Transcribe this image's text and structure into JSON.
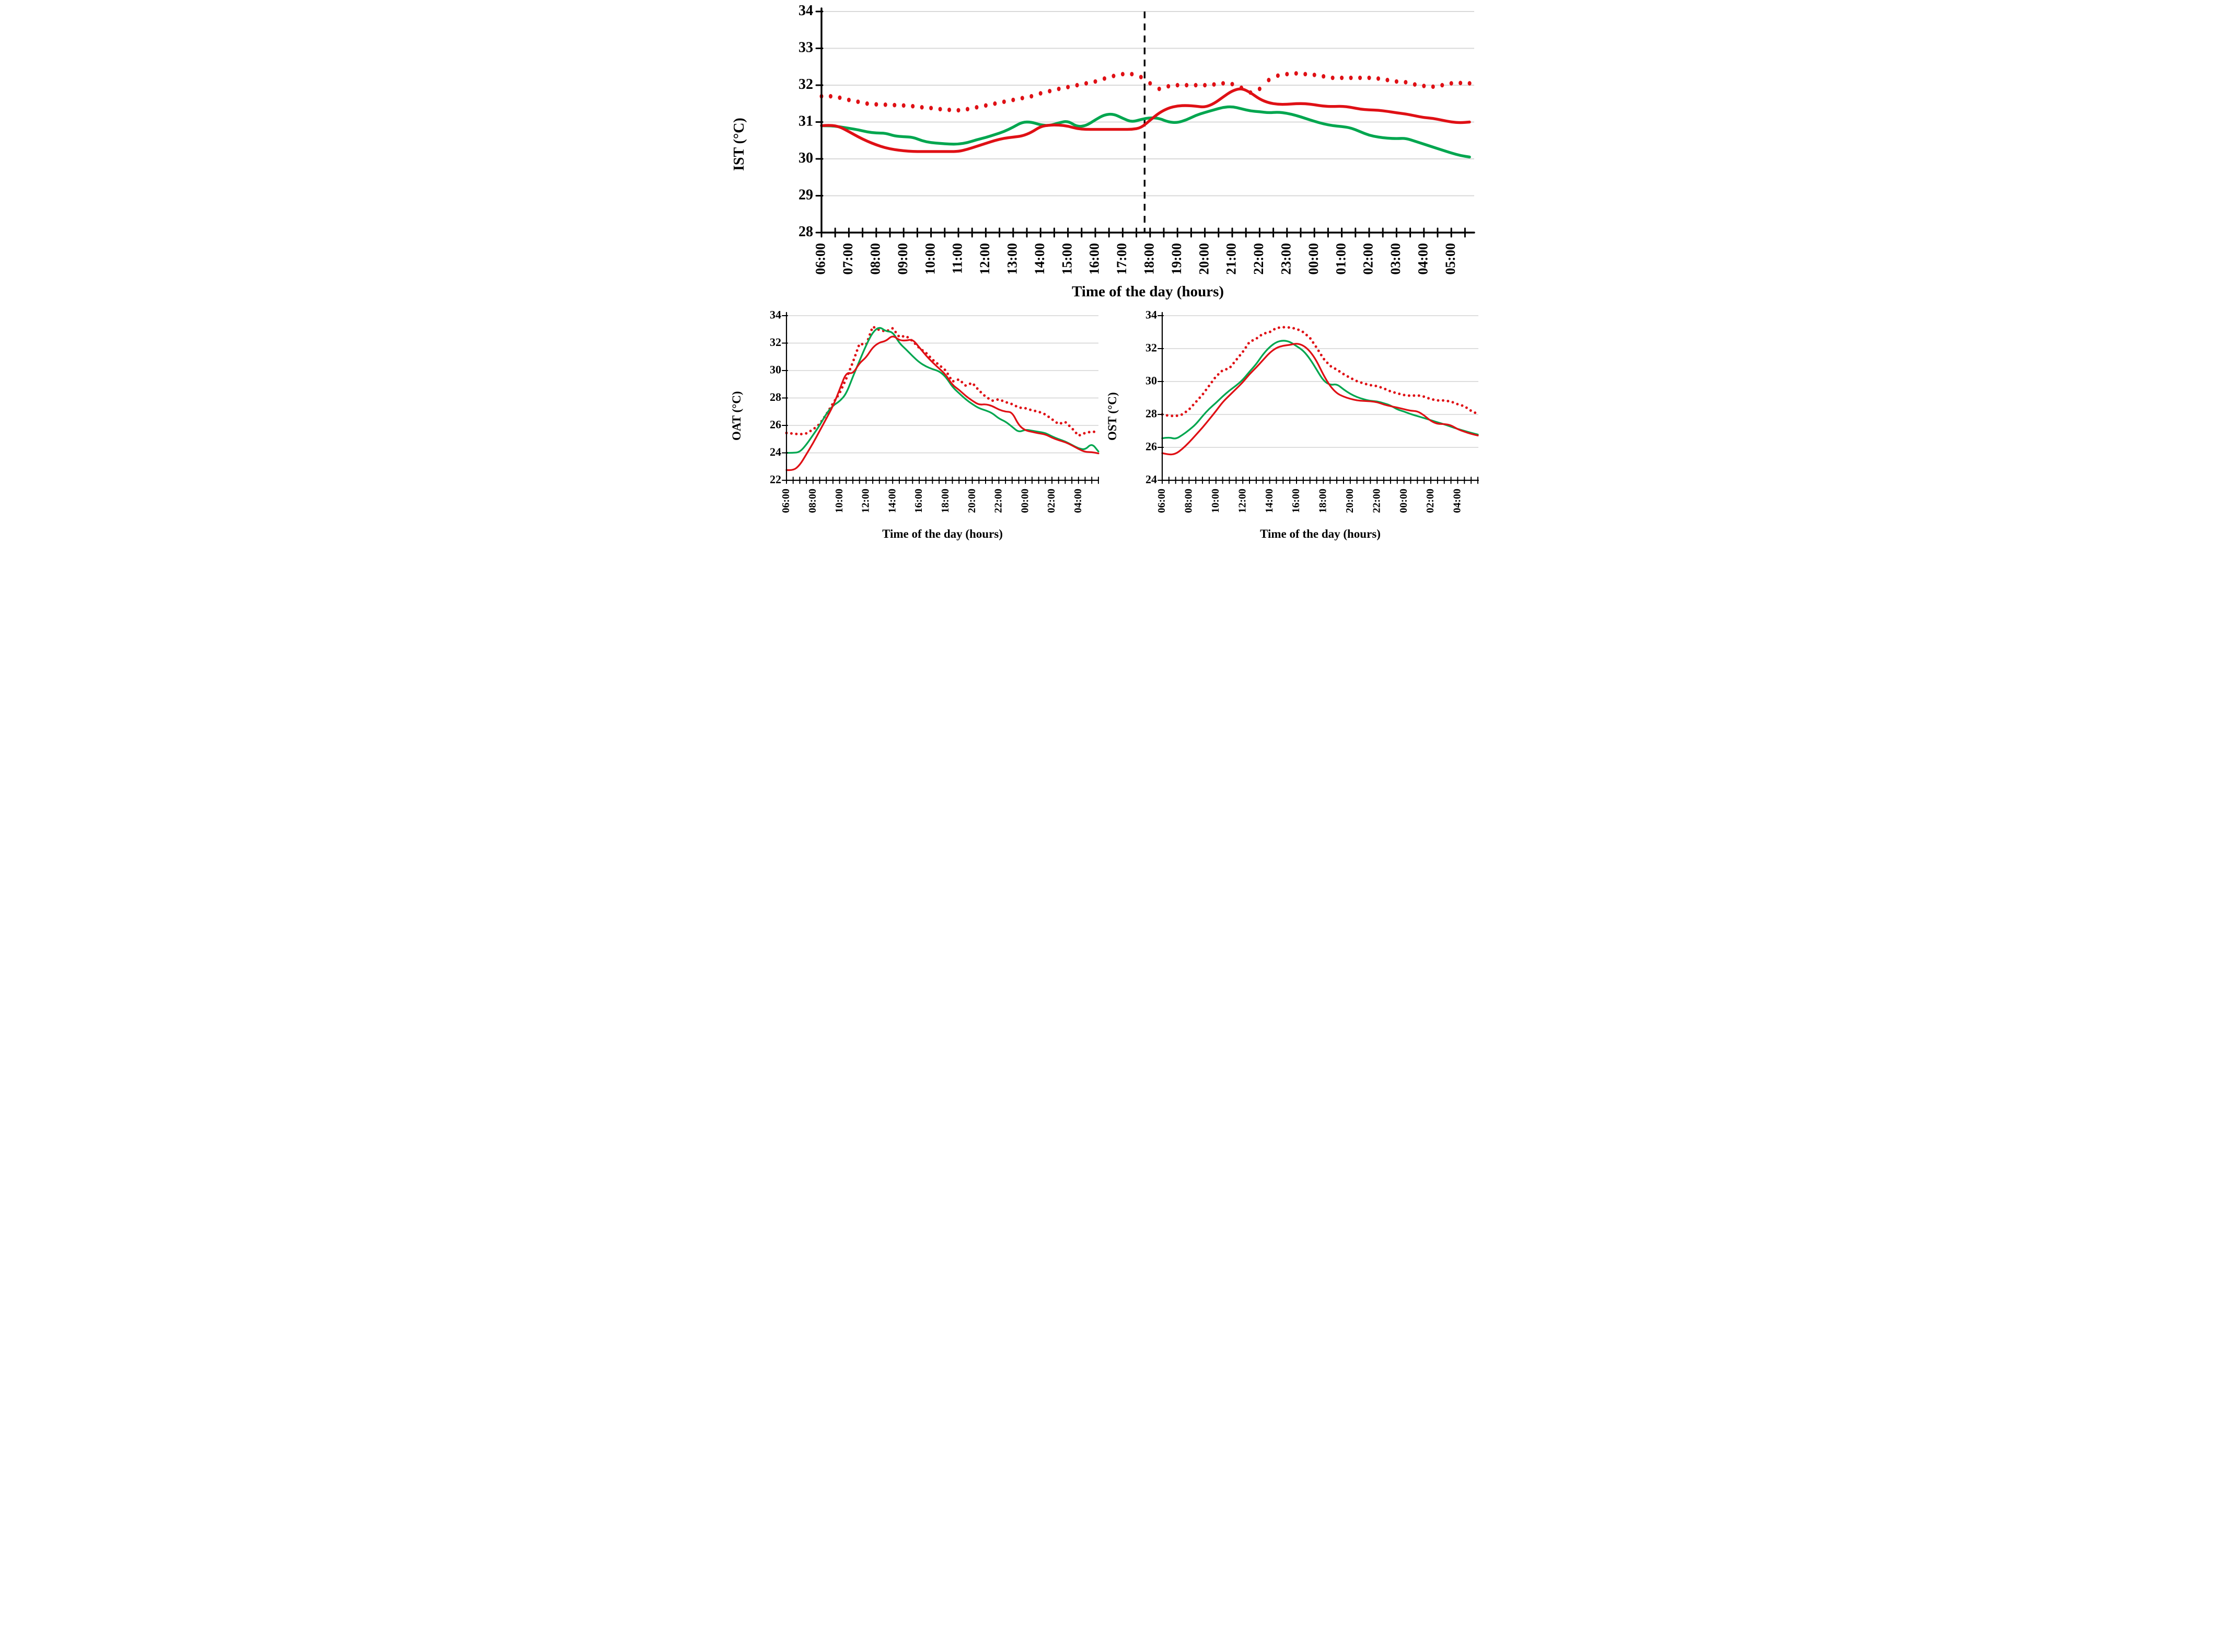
{
  "colors": {
    "red": "#df1015",
    "green": "#00a64f",
    "grid": "#d9d9d9",
    "axis": "#000000",
    "annotation": "#000000",
    "background": "#ffffff"
  },
  "chart_data": [
    {
      "id": "ist",
      "type": "line",
      "ylabel": "IST (°C)",
      "xlabel": "Time of the day (hours)",
      "ylim": [
        28,
        34
      ],
      "yticks": [
        28,
        29,
        30,
        31,
        32,
        33,
        34
      ],
      "grid": "horizontal",
      "x_start": "06:00",
      "x_step_minutes": 20,
      "x_total_hours": 23.67,
      "xtick_labels": [
        "06:00",
        "07:00",
        "08:00",
        "09:00",
        "10:00",
        "11:00",
        "12:00",
        "13:00",
        "14:00",
        "15:00",
        "16:00",
        "17:00",
        "18:00",
        "19:00",
        "20:00",
        "21:00",
        "22:00",
        "23:00",
        "00:00",
        "01:00",
        "02:00",
        "03:00",
        "04:00",
        "05:00"
      ],
      "xtick_label_every_hours": 1,
      "minor_tick_minutes": 30,
      "legend": "none",
      "annotation": {
        "type": "vertical-dashed-line",
        "nearest_label": "18:00",
        "hours_after_start": 11.8
      },
      "series": [
        {
          "name": "red-dotted",
          "color": "red",
          "style": "dotted",
          "values": [
            31.7,
            31.7,
            31.66,
            31.6,
            31.55,
            31.5,
            31.48,
            31.47,
            31.46,
            31.45,
            31.43,
            31.4,
            31.38,
            31.35,
            31.33,
            31.32,
            31.35,
            31.4,
            31.45,
            31.5,
            31.55,
            31.6,
            31.65,
            31.7,
            31.78,
            31.84,
            31.9,
            31.95,
            32.0,
            32.05,
            32.1,
            32.18,
            32.25,
            32.3,
            32.3,
            32.22,
            32.05,
            31.9,
            31.97,
            32.0,
            32.0,
            32.0,
            32.0,
            32.02,
            32.05,
            32.03,
            31.93,
            31.8,
            31.9,
            32.14,
            32.26,
            32.3,
            32.32,
            32.3,
            32.28,
            32.24,
            32.2,
            32.2,
            32.2,
            32.2,
            32.2,
            32.18,
            32.14,
            32.1,
            32.08,
            32.02,
            31.98,
            31.96,
            32.0,
            32.05,
            32.06,
            32.05
          ]
        },
        {
          "name": "green-solid",
          "color": "green",
          "style": "solid",
          "values": [
            30.9,
            30.9,
            30.87,
            30.83,
            30.79,
            30.73,
            30.7,
            30.7,
            30.62,
            30.6,
            30.59,
            30.49,
            30.44,
            30.42,
            30.4,
            30.4,
            30.44,
            30.52,
            30.58,
            30.66,
            30.74,
            30.86,
            31.0,
            31.0,
            30.92,
            30.9,
            30.98,
            31.03,
            30.87,
            30.9,
            31.06,
            31.2,
            31.22,
            31.1,
            31.0,
            31.07,
            31.12,
            31.1,
            31.0,
            30.98,
            31.06,
            31.18,
            31.26,
            31.33,
            31.4,
            31.42,
            31.36,
            31.3,
            31.28,
            31.25,
            31.27,
            31.24,
            31.18,
            31.1,
            31.02,
            30.95,
            30.9,
            30.88,
            30.84,
            30.74,
            30.64,
            30.59,
            30.56,
            30.55,
            30.56,
            30.48,
            30.4,
            30.32,
            30.24,
            30.16,
            30.09,
            30.05
          ]
        },
        {
          "name": "red-solid",
          "color": "red",
          "style": "solid",
          "values": [
            30.9,
            30.92,
            30.87,
            30.74,
            30.6,
            30.48,
            30.38,
            30.3,
            30.25,
            30.22,
            30.2,
            30.2,
            30.2,
            30.2,
            30.2,
            30.2,
            30.26,
            30.34,
            30.42,
            30.5,
            30.56,
            30.59,
            30.62,
            30.72,
            30.88,
            30.92,
            30.92,
            30.89,
            30.82,
            30.8,
            30.8,
            30.8,
            30.8,
            30.8,
            30.8,
            30.84,
            31.05,
            31.25,
            31.38,
            31.44,
            31.45,
            31.43,
            31.4,
            31.5,
            31.68,
            31.85,
            31.92,
            31.8,
            31.62,
            31.52,
            31.48,
            31.48,
            31.5,
            31.5,
            31.47,
            31.43,
            31.42,
            31.43,
            31.4,
            31.35,
            31.33,
            31.32,
            31.29,
            31.25,
            31.22,
            31.17,
            31.12,
            31.1,
            31.05,
            31.0,
            30.98,
            31.0
          ]
        }
      ]
    },
    {
      "id": "oat",
      "type": "line",
      "ylabel": "OAT (°C)",
      "xlabel": "Time of the day (hours)",
      "ylim": [
        22,
        34
      ],
      "yticks": [
        22,
        24,
        26,
        28,
        30,
        32,
        34
      ],
      "grid": "horizontal",
      "x_start": "06:00",
      "x_step_minutes": 30,
      "x_total_hours": 23.5,
      "xtick_labels": [
        "06:00",
        "08:00",
        "10:00",
        "12:00",
        "14:00",
        "16:00",
        "18:00",
        "20:00",
        "22:00",
        "00:00",
        "02:00",
        "04:00"
      ],
      "xtick_label_every_hours": 2,
      "minor_tick_minutes": 30,
      "legend": "none",
      "series": [
        {
          "name": "red-dotted",
          "color": "red",
          "style": "dotted",
          "values": [
            25.45,
            25.4,
            25.35,
            25.42,
            25.7,
            26.1,
            26.8,
            27.6,
            28.35,
            29.4,
            30.6,
            31.95,
            31.88,
            33.2,
            32.95,
            32.85,
            33.08,
            32.45,
            32.52,
            32.15,
            31.65,
            31.3,
            30.8,
            30.4,
            30.0,
            29.2,
            29.35,
            28.9,
            29.1,
            28.55,
            28.1,
            27.8,
            27.9,
            27.7,
            27.55,
            27.3,
            27.25,
            27.1,
            27.0,
            26.8,
            26.45,
            26.1,
            26.25,
            25.8,
            25.25,
            25.45,
            25.55,
            25.5
          ]
        },
        {
          "name": "green-solid",
          "color": "green",
          "style": "solid",
          "values": [
            24.0,
            24.0,
            24.05,
            24.6,
            25.3,
            26.0,
            26.85,
            27.45,
            27.75,
            28.3,
            29.55,
            30.7,
            31.85,
            32.8,
            33.2,
            32.85,
            32.82,
            32.0,
            31.55,
            31.05,
            30.6,
            30.3,
            30.1,
            29.95,
            29.55,
            28.8,
            28.35,
            27.9,
            27.55,
            27.25,
            27.1,
            26.9,
            26.5,
            26.28,
            25.9,
            25.5,
            25.7,
            25.61,
            25.53,
            25.45,
            25.2,
            25.0,
            24.83,
            24.58,
            24.33,
            24.22,
            24.7,
            24.1
          ]
        },
        {
          "name": "red-solid",
          "color": "red",
          "style": "solid",
          "values": [
            22.75,
            22.7,
            23.1,
            23.9,
            24.7,
            25.6,
            26.5,
            27.4,
            28.6,
            29.88,
            29.75,
            30.55,
            30.95,
            31.7,
            32.05,
            32.15,
            32.58,
            32.2,
            32.18,
            32.28,
            31.7,
            31.1,
            30.6,
            30.15,
            29.7,
            28.95,
            28.6,
            28.15,
            27.8,
            27.5,
            27.55,
            27.42,
            27.15,
            27.0,
            26.97,
            26.0,
            25.63,
            25.53,
            25.42,
            25.35,
            25.1,
            24.92,
            24.78,
            24.55,
            24.28,
            24.06,
            24.06,
            23.96
          ]
        }
      ]
    },
    {
      "id": "ost",
      "type": "line",
      "ylabel": "OST (°C)",
      "xlabel": "Time of the day (hours)",
      "ylim": [
        24,
        34
      ],
      "yticks": [
        24,
        26,
        28,
        30,
        32,
        34
      ],
      "grid": "horizontal",
      "x_start": "06:00",
      "x_step_minutes": 30,
      "x_total_hours": 23.5,
      "xtick_labels": [
        "06:00",
        "08:00",
        "10:00",
        "12:00",
        "14:00",
        "16:00",
        "18:00",
        "20:00",
        "22:00",
        "00:00",
        "02:00",
        "04:00"
      ],
      "xtick_label_every_hours": 2,
      "minor_tick_minutes": 30,
      "legend": "none",
      "series": [
        {
          "name": "red-dotted",
          "color": "red",
          "style": "dotted",
          "values": [
            28.0,
            27.92,
            27.9,
            28.0,
            28.3,
            28.75,
            29.2,
            29.75,
            30.3,
            30.68,
            30.8,
            31.3,
            31.8,
            32.4,
            32.6,
            32.9,
            33.0,
            33.25,
            33.3,
            33.28,
            33.2,
            33.0,
            32.65,
            32.05,
            31.4,
            30.95,
            30.72,
            30.45,
            30.22,
            30.02,
            29.88,
            29.78,
            29.72,
            29.58,
            29.4,
            29.28,
            29.18,
            29.13,
            29.16,
            29.08,
            28.93,
            28.85,
            28.85,
            28.78,
            28.62,
            28.5,
            28.22,
            28.02
          ]
        },
        {
          "name": "green-solid",
          "color": "green",
          "style": "solid",
          "values": [
            26.55,
            26.62,
            26.5,
            26.75,
            27.05,
            27.4,
            27.9,
            28.35,
            28.7,
            29.1,
            29.45,
            29.75,
            30.1,
            30.6,
            31.05,
            31.65,
            32.1,
            32.4,
            32.5,
            32.42,
            32.15,
            31.88,
            31.38,
            30.72,
            30.05,
            29.78,
            29.85,
            29.52,
            29.25,
            29.05,
            28.92,
            28.82,
            28.8,
            28.68,
            28.55,
            28.3,
            28.18,
            28.02,
            27.9,
            27.78,
            27.65,
            27.52,
            27.4,
            27.25,
            27.12,
            27.0,
            26.88,
            26.78
          ]
        },
        {
          "name": "red-solid",
          "color": "red",
          "style": "solid",
          "values": [
            25.65,
            25.55,
            25.6,
            25.9,
            26.3,
            26.75,
            27.2,
            27.7,
            28.2,
            28.75,
            29.15,
            29.55,
            29.95,
            30.45,
            30.85,
            31.3,
            31.75,
            32.05,
            32.18,
            32.22,
            32.32,
            32.2,
            31.85,
            31.25,
            30.4,
            29.72,
            29.28,
            29.08,
            28.95,
            28.85,
            28.82,
            28.8,
            28.75,
            28.6,
            28.5,
            28.42,
            28.32,
            28.22,
            28.2,
            27.95,
            27.6,
            27.42,
            27.42,
            27.35,
            27.1,
            26.95,
            26.82,
            26.72
          ]
        }
      ]
    }
  ]
}
